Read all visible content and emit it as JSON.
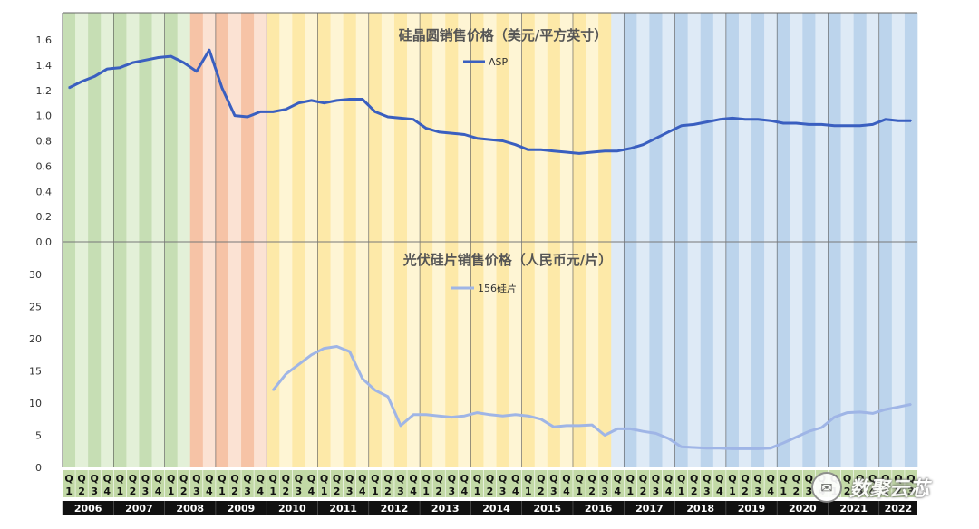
{
  "chart_data": [
    {
      "type": "line",
      "title": "硅晶圆销售价格（美元/平方英寸）",
      "ylim": [
        0,
        1.6
      ],
      "yticks": [
        "0.0",
        "0.2",
        "0.4",
        "0.6",
        "0.8",
        "1.0",
        "1.2",
        "1.4",
        "1.6"
      ],
      "series": [
        {
          "name": "ASP",
          "color": "#3a5fc0",
          "x": [
            0,
            1,
            2,
            3,
            4,
            5,
            6,
            7,
            8,
            9,
            10,
            11,
            12,
            13,
            14,
            15,
            16,
            17,
            18,
            19,
            20,
            21,
            22,
            23,
            24,
            25,
            26,
            27,
            28,
            29,
            30,
            31,
            32,
            33,
            34,
            35,
            36,
            37,
            38,
            39,
            40,
            41,
            42,
            43,
            44,
            45,
            46,
            47,
            48,
            49,
            50,
            51,
            52,
            53,
            54,
            55,
            56,
            57,
            58,
            59,
            60,
            61,
            62,
            63,
            64,
            65,
            66
          ],
          "values": [
            1.22,
            1.27,
            1.31,
            1.37,
            1.38,
            1.42,
            1.44,
            1.46,
            1.47,
            1.42,
            1.35,
            1.52,
            1.22,
            1.0,
            0.99,
            1.03,
            1.03,
            1.05,
            1.1,
            1.12,
            1.1,
            1.12,
            1.13,
            1.13,
            1.03,
            0.99,
            0.98,
            0.97,
            0.9,
            0.87,
            0.86,
            0.85,
            0.82,
            0.81,
            0.8,
            0.77,
            0.73,
            0.73,
            0.72,
            0.71,
            0.7,
            0.71,
            0.72,
            0.72,
            0.74,
            0.77,
            0.82,
            0.87,
            0.92,
            0.93,
            0.95,
            0.97,
            0.98,
            0.97,
            0.97,
            0.96,
            0.94,
            0.94,
            0.93,
            0.93,
            0.92,
            0.92,
            0.92,
            0.93,
            0.97,
            0.96,
            0.96
          ]
        }
      ]
    },
    {
      "type": "line",
      "title": "光伏硅片销售价格（人民币元/片）",
      "ylim": [
        0,
        30
      ],
      "yticks": [
        "0",
        "5",
        "10",
        "15",
        "20",
        "25",
        "30"
      ],
      "series": [
        {
          "name": "156硅片",
          "color": "#9fb5e6",
          "x": [
            16,
            17,
            18,
            19,
            20,
            21,
            22,
            23,
            24,
            25,
            26,
            27,
            28,
            29,
            30,
            31,
            32,
            33,
            34,
            35,
            36,
            37,
            38,
            39,
            40,
            41,
            42,
            43,
            44,
            45,
            46,
            47,
            48,
            49,
            50,
            51,
            52,
            53,
            54,
            55,
            56,
            57,
            58,
            59,
            60,
            61,
            62,
            63,
            64,
            65,
            66
          ],
          "values": [
            12,
            14.5,
            16,
            17.5,
            18.5,
            18.8,
            18,
            13.8,
            12,
            11,
            6.5,
            8.2,
            8.2,
            8.0,
            7.8,
            8.0,
            8.5,
            8.2,
            8.0,
            8.2,
            8.0,
            7.5,
            6.3,
            6.5,
            6.5,
            6.6,
            5.0,
            6.0,
            6.0,
            5.6,
            5.3,
            4.5,
            3.2,
            3.1,
            3.0,
            3.0,
            2.9,
            2.9,
            2.9,
            3.0,
            3.8,
            4.7,
            5.6,
            6.2,
            7.8,
            8.5,
            8.6,
            8.4,
            9.0,
            9.4,
            9.8
          ]
        }
      ]
    }
  ],
  "axis": {
    "quarter_top": "Q",
    "quarter_numbers": [
      "1",
      "2",
      "3",
      "4",
      "1",
      "2",
      "3",
      "4",
      "1",
      "2",
      "3",
      "4",
      "1",
      "2",
      "3",
      "4",
      "1",
      "2",
      "3",
      "4",
      "1",
      "2",
      "3",
      "4",
      "1",
      "2",
      "3",
      "4",
      "1",
      "2",
      "3",
      "4",
      "1",
      "2",
      "3",
      "4",
      "1",
      "2",
      "3",
      "4",
      "1",
      "2",
      "3",
      "4",
      "1",
      "2",
      "3",
      "4",
      "1",
      "2",
      "3",
      "4",
      "1",
      "2",
      "3",
      "4",
      "1",
      "2",
      "3",
      "4",
      "1",
      "2",
      "3",
      "4",
      "1",
      "2",
      "3"
    ],
    "years": [
      "2006",
      "2007",
      "2008",
      "2009",
      "2010",
      "2011",
      "2012",
      "2013",
      "2014",
      "2015",
      "2016",
      "2017",
      "2018",
      "2019",
      "2020",
      "2021",
      "2022"
    ]
  },
  "band_colors": {
    "green": [
      "#c6deb4",
      "#e3f0d8"
    ],
    "orange": [
      "#f6c3a6",
      "#fbe2d3"
    ],
    "yellow": [
      "#fde9a8",
      "#fef5d4"
    ],
    "blue": [
      "#bcd4ec",
      "#deeaf6"
    ]
  },
  "watermark": {
    "text": "数聚云芯",
    "icon": "wechat-icon"
  }
}
